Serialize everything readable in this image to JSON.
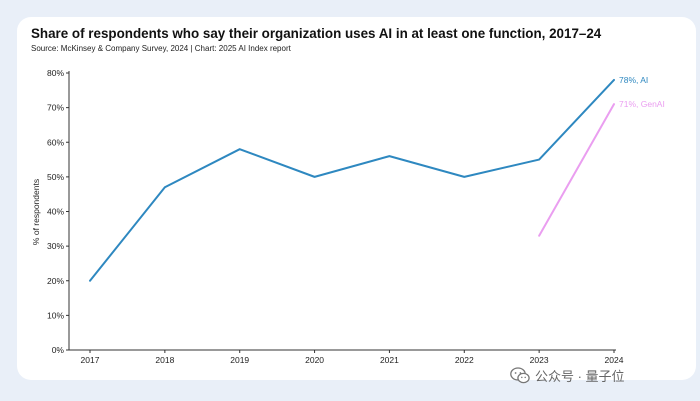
{
  "title": "Share of respondents who say their organization uses AI in at least one function, 2017–24",
  "subtitle": "Source: McKinsey & Company Survey, 2024 | Chart: 2025 AI Index report",
  "watermark": {
    "text": "公众号 · 量子位",
    "icon": "wechat-icon"
  },
  "chart_data": {
    "type": "line",
    "x": [
      "2017",
      "2018",
      "2019",
      "2020",
      "2021",
      "2022",
      "2023",
      "2024"
    ],
    "ylabel": "% of respondents",
    "xlabel": "",
    "ylim": [
      0,
      80
    ],
    "y_ticks": [
      "0%",
      "10%",
      "20%",
      "30%",
      "40%",
      "50%",
      "60%",
      "70%",
      "80%"
    ],
    "grid": false,
    "series": [
      {
        "values": [
          20,
          47,
          58,
          50,
          56,
          50,
          55,
          78
        ],
        "color": "#2e88c0",
        "end_label": "78%, AI"
      },
      {
        "values": [
          null,
          null,
          null,
          null,
          null,
          null,
          33,
          71
        ],
        "color": "#ea9ef0",
        "end_label": "71%, GenAI"
      }
    ]
  }
}
